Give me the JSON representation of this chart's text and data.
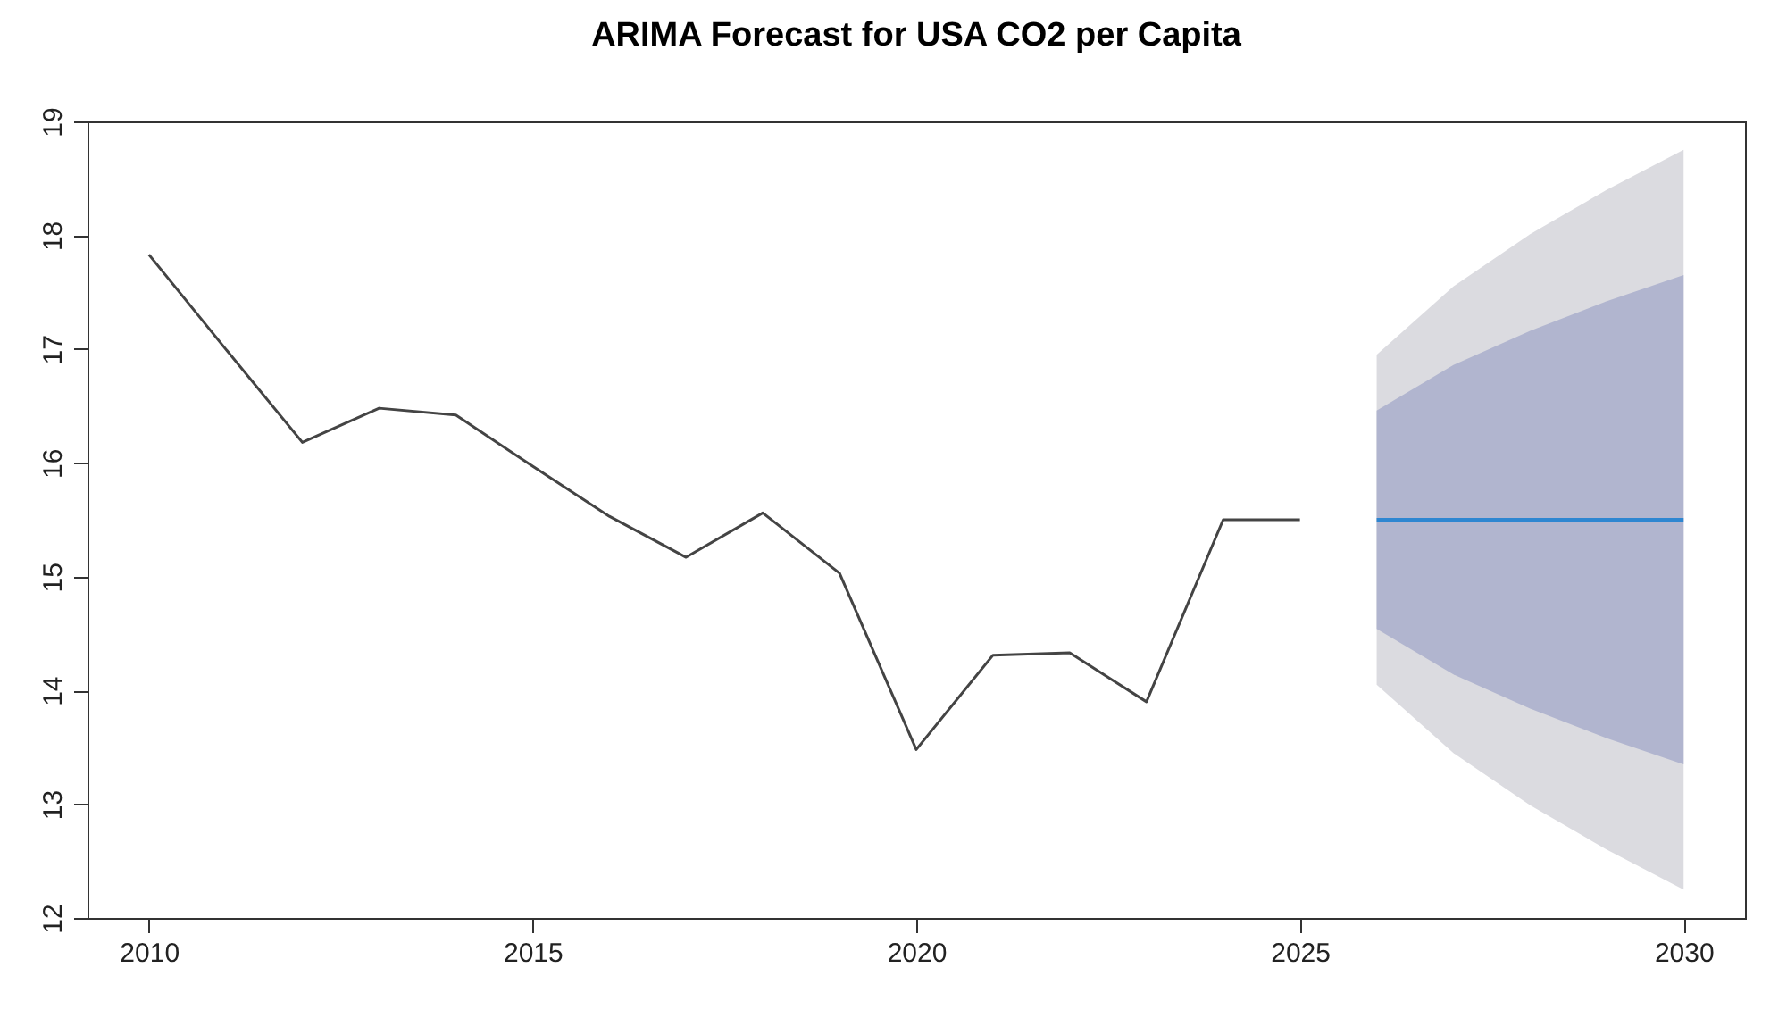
{
  "chart_data": {
    "type": "line",
    "title": "ARIMA Forecast for USA CO2 per Capita",
    "xlim": [
      2009.2,
      2030.8
    ],
    "xticks": [
      2010,
      2015,
      2020,
      2025,
      2030
    ],
    "ylim": [
      12,
      19
    ],
    "yticks": [
      12,
      13,
      14,
      15,
      16,
      17,
      18,
      19
    ],
    "series": [
      {
        "color": "#444444",
        "x": [
          2010,
          2011,
          2012,
          2013,
          2014,
          2015,
          2016,
          2017,
          2018,
          2019,
          2020,
          2021,
          2022,
          2023,
          2024,
          2025
        ],
        "values": [
          17.83,
          17.0,
          16.18,
          16.48,
          16.42,
          15.97,
          15.53,
          15.17,
          15.56,
          15.03,
          13.48,
          14.31,
          14.33,
          13.9,
          15.5,
          15.5
        ]
      },
      {
        "color": "#dbdbe0",
        "x": [
          2026,
          2027,
          2028,
          2029,
          2030
        ],
        "values": [
          null,
          null,
          null,
          null,
          null
        ],
        "lower": [
          14.05,
          13.45,
          12.99,
          12.6,
          12.25
        ],
        "upper": [
          16.95,
          17.55,
          18.01,
          18.4,
          18.75
        ]
      },
      {
        "color": "#b1b5cf",
        "x": [
          2026,
          2027,
          2028,
          2029,
          2030
        ],
        "values": [
          null,
          null,
          null,
          null,
          null
        ],
        "lower": [
          14.54,
          14.14,
          13.84,
          13.58,
          13.35
        ],
        "upper": [
          16.46,
          16.86,
          17.16,
          17.42,
          17.65
        ]
      },
      {
        "color": "#2e86d1",
        "x": [
          2026,
          2027,
          2028,
          2029,
          2030
        ],
        "values": [
          15.5,
          15.5,
          15.5,
          15.5,
          15.5
        ]
      }
    ]
  }
}
